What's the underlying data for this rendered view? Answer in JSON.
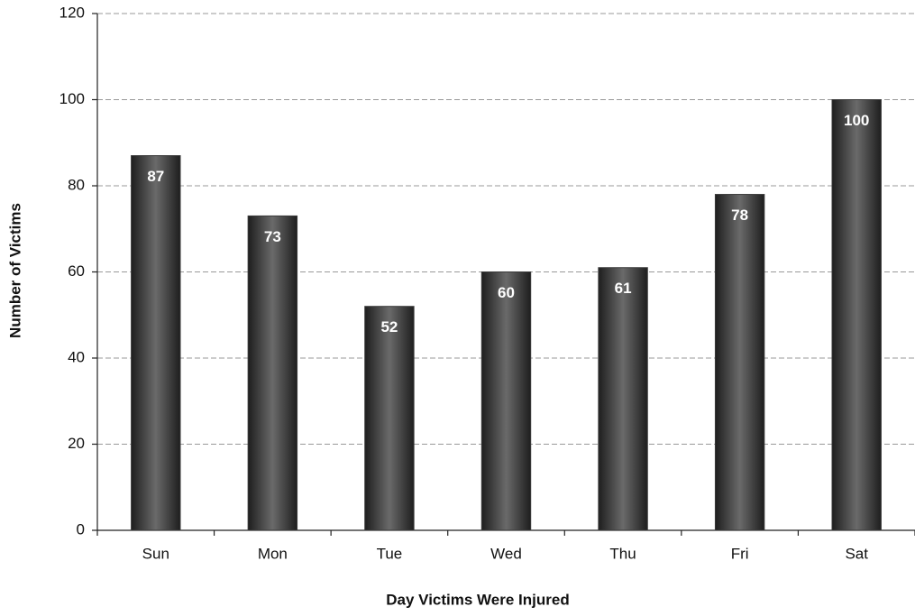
{
  "chart_data": {
    "type": "bar",
    "x_label": "Day Victims Were Injured",
    "y_label": "Number of Victims",
    "categories": [
      "Sun",
      "Mon",
      "Tue",
      "Wed",
      "Thu",
      "Fri",
      "Sat"
    ],
    "values": [
      87,
      73,
      52,
      60,
      61,
      78,
      100
    ],
    "color": "#3a3a3a",
    "ylim": [
      0,
      120
    ],
    "yticks": [
      0,
      20,
      40,
      60,
      80,
      100,
      120
    ],
    "grid": true
  }
}
